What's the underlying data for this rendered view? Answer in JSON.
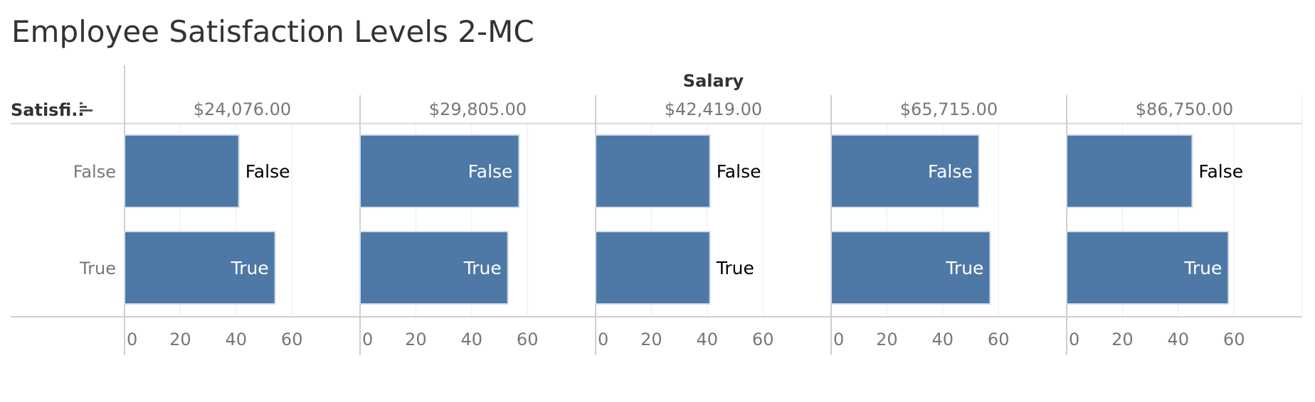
{
  "title": "Employee Satisfaction Levels 2-MC",
  "chart_data": {
    "type": "bar",
    "orientation": "horizontal",
    "column_header": "Salary",
    "row_header": "Satisfi..",
    "panels": [
      "$24,076.00",
      "$29,805.00",
      "$42,419.00",
      "$65,715.00",
      "$86,750.00"
    ],
    "categories": [
      "False",
      "True"
    ],
    "values": [
      [
        41,
        54
      ],
      [
        57,
        53
      ],
      [
        41,
        41
      ],
      [
        53,
        57
      ],
      [
        45,
        58
      ]
    ],
    "xlim": [
      0,
      65
    ],
    "ticks": [
      0,
      20,
      40,
      60
    ],
    "grid": true,
    "legend": "none"
  },
  "colors": {
    "bar": "#4e79a7",
    "bar_border": "#d4dde8",
    "label_inside": "#ffffff",
    "label_outside": "#000000"
  }
}
